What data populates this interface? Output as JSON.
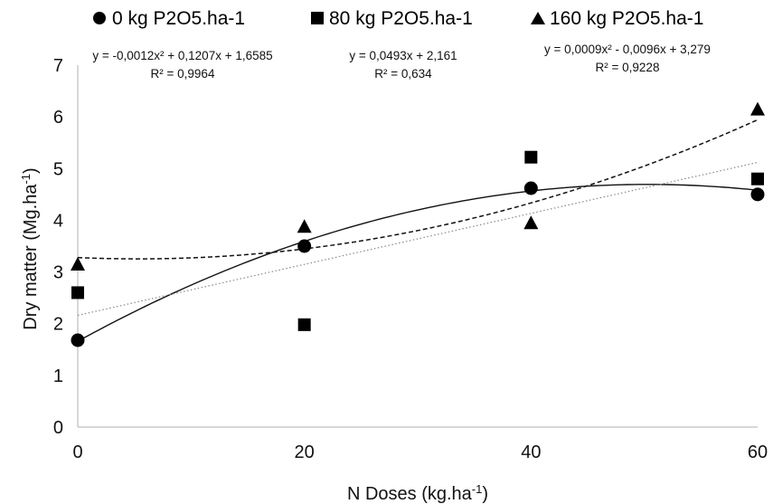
{
  "chart_data": {
    "type": "scatter",
    "xlabel": "N Doses (kg.ha",
    "xlabel_sup": "-1",
    "xlabel_end": ")",
    "ylabel": "Dry matter (Mg.ha",
    "ylabel_sup": "-1",
    "ylabel_end": ")",
    "xlim": [
      0,
      60
    ],
    "ylim": [
      0,
      7
    ],
    "xticks": [
      "0",
      "20",
      "40",
      "60"
    ],
    "yticks": [
      "0",
      "1",
      "2",
      "3",
      "4",
      "5",
      "6",
      "7"
    ],
    "grid": false,
    "legend_position": "top",
    "series": [
      {
        "name": "0 kg P2O5.ha-1",
        "marker": "circle",
        "x": [
          0,
          20,
          40,
          60
        ],
        "y": [
          1.68,
          3.5,
          4.62,
          4.5
        ],
        "trend": {
          "type": "poly2",
          "coef": [
            -0.0012,
            0.1207,
            1.6585
          ],
          "style": "solid"
        },
        "equation": "y = -0,0012x² + 0,1207x + 1,6585",
        "r2": "R² = 0,9964"
      },
      {
        "name": "80 kg P2O5.ha-1",
        "marker": "square",
        "x": [
          0,
          20,
          40,
          60
        ],
        "y": [
          2.6,
          1.98,
          5.22,
          4.8
        ],
        "trend": {
          "type": "linear",
          "coef": [
            0.0493,
            2.161
          ],
          "style": "dotted"
        },
        "equation": "y = 0,0493x + 2,161",
        "r2": "R² = 0,634"
      },
      {
        "name": "160 kg P2O5.ha-1",
        "marker": "triangle",
        "x": [
          0,
          20,
          40,
          60
        ],
        "y": [
          3.15,
          3.88,
          3.95,
          6.15
        ],
        "trend": {
          "type": "poly2",
          "coef": [
            0.0009,
            -0.0096,
            3.279
          ],
          "style": "dashed"
        },
        "equation": "y = 0,0009x² - 0,0096x + 3,279",
        "r2": "R² = 0,9228"
      }
    ],
    "colors": {
      "marker": "#000000",
      "axis": "#bfbfbf",
      "text": "#111111"
    }
  }
}
